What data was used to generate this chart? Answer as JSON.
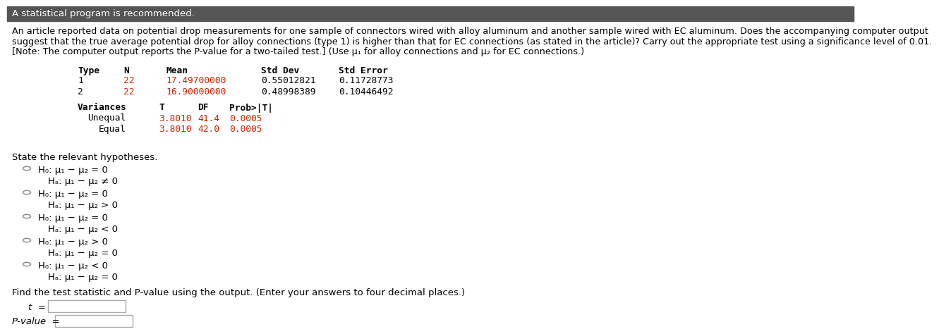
{
  "top_bar_color": "#555555",
  "top_bar_text": "A statistical program is recommended.",
  "para1": "An article reported data on potential drop measurements for one sample of connectors wired with alloy aluminum and another sample wired with EC aluminum. Does the accompanying computer output",
  "para2": "suggest that the true average potential drop for alloy connections (type 1) is higher than that for EC connections (as stated in the article)? Carry out the appropriate test using a significance level of 0.01.",
  "para3": "[Note: The computer output reports the P-value for a two-tailed test.] (Use μ₁ for alloy connections and μ₂ for EC connections.)",
  "t1_header": [
    "Type",
    "N",
    "Mean",
    "Std Dev",
    "Std Error"
  ],
  "t1_r1": [
    "1",
    "22",
    "17.49700000",
    "0.55012821",
    "0.11728773"
  ],
  "t1_r2": [
    "2",
    "22",
    "16.90000000",
    "0.48998389",
    "0.10446492"
  ],
  "t2_header": [
    "Variances",
    "T",
    "DF",
    "Prob>|T|"
  ],
  "t2_r1": [
    "Unequal",
    "3.8010",
    "41.4",
    "0.0005"
  ],
  "t2_r2": [
    "Equal",
    "3.8010",
    "42.0",
    "0.0005"
  ],
  "state_hyp": "State the relevant hypotheses.",
  "opts_h0": [
    "H₀: μ₁ − μ₂ = 0",
    "H₀: μ₁ − μ₂ = 0",
    "H₀: μ₁ − μ₂ = 0",
    "H₀: μ₁ − μ₂ > 0",
    "H₀: μ₁ − μ₂ < 0"
  ],
  "opts_ha": [
    "Hₐ: μ₁ − μ₂ ≠ 0",
    "Hₐ: μ₁ − μ₂ > 0",
    "Hₐ: μ₁ − μ₂ < 0",
    "Hₐ: μ₁ − μ₂ = 0",
    "Hₐ: μ₁ − μ₂ = 0"
  ],
  "bottom_text": "Find the test statistic and P-value using the output. (Enter your answers to four decimal places.)",
  "t_label": "t  =",
  "pval_label": "P-value  =",
  "red": "#cc2200",
  "black": "#000000",
  "gray": "#888888",
  "mono": "DejaVu Sans Mono",
  "sans": "DejaVu Sans"
}
